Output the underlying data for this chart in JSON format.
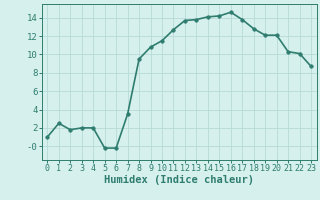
{
  "x": [
    0,
    1,
    2,
    3,
    4,
    5,
    6,
    7,
    8,
    9,
    10,
    11,
    12,
    13,
    14,
    15,
    16,
    17,
    18,
    19,
    20,
    21,
    22,
    23
  ],
  "y": [
    1,
    2.5,
    1.8,
    2,
    2,
    -0.2,
    -0.2,
    3.5,
    9.5,
    10.8,
    11.5,
    12.7,
    13.7,
    13.8,
    14.1,
    14.2,
    14.6,
    13.8,
    12.8,
    12.1,
    12.1,
    10.3,
    10.1,
    8.7
  ],
  "line_color": "#2e7d6e",
  "marker_color": "#2e7d6e",
  "bg_color": "#d6f0ed",
  "grid_color": "#b8dbd7",
  "axis_color": "#2e7d6e",
  "xlabel": "Humidex (Indice chaleur)",
  "xlim": [
    -0.5,
    23.5
  ],
  "ylim": [
    -1.5,
    15.5
  ],
  "yticks": [
    0,
    2,
    4,
    6,
    8,
    10,
    12,
    14
  ],
  "ytick_labels": [
    "-0",
    "2",
    "4",
    "6",
    "8",
    "10",
    "12",
    "14"
  ],
  "xlabel_fontsize": 7.5,
  "tick_fontsize": 6.5,
  "line_width": 1.2,
  "marker_size": 2.5
}
